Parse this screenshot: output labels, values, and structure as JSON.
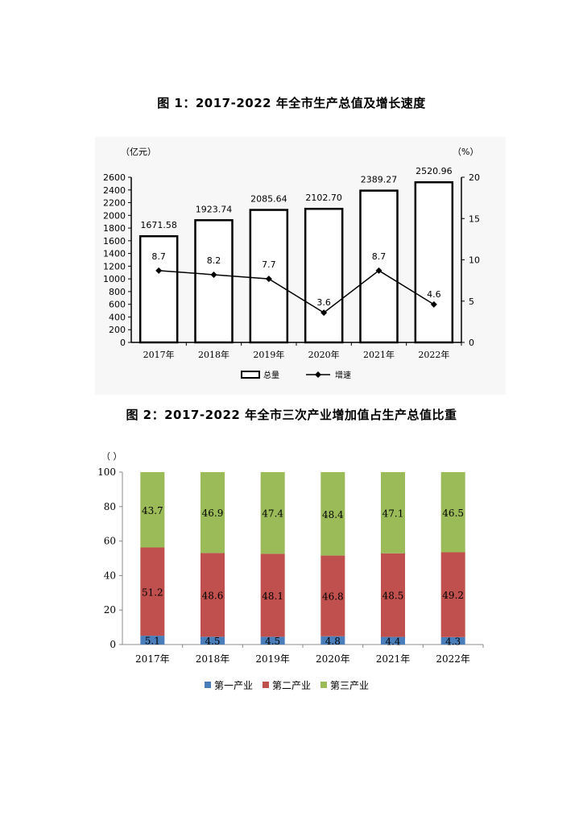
{
  "chart_data": [
    {
      "type": "bar",
      "title": "图 1：2017-2022 年全市生产总值及增长速度",
      "categories": [
        "2017年",
        "2018年",
        "2019年",
        "2020年",
        "2021年",
        "2022年"
      ],
      "series": [
        {
          "name": "总量",
          "type": "bar",
          "axis": "left",
          "values": [
            1671.58,
            1923.74,
            2085.64,
            2102.7,
            2389.27,
            2520.96
          ],
          "labels": [
            "1671.58",
            "1923.74",
            "2085.64",
            "2102.70",
            "2389.27",
            "2520.96"
          ]
        },
        {
          "name": "增速",
          "type": "line",
          "axis": "right",
          "values": [
            8.7,
            8.2,
            7.7,
            3.6,
            8.7,
            4.6
          ],
          "labels": [
            "8.7",
            "8.2",
            "7.7",
            "3.6",
            "8.7",
            "4.6"
          ]
        }
      ],
      "ylabel": "（亿元）",
      "ylabel_right": "（%）",
      "ylim": [
        0,
        2600
      ],
      "yticks": [
        "0",
        "200",
        "400",
        "600",
        "800",
        "1000",
        "1200",
        "1400",
        "1600",
        "1800",
        "2000",
        "2200",
        "2400",
        "2600"
      ],
      "ylim_right": [
        0,
        20
      ],
      "yticks_right": [
        "0",
        "5",
        "10",
        "15",
        "20"
      ],
      "legend_position": "bottom",
      "grid": false
    },
    {
      "type": "bar",
      "stacked": true,
      "title": "图 2：2017-2022 年全市三次产业增加值占生产总值比重",
      "categories": [
        "2017年",
        "2018年",
        "2019年",
        "2020年",
        "2021年",
        "2022年"
      ],
      "series": [
        {
          "name": "第一产业",
          "color": "#4a7ebb",
          "values": [
            5.1,
            4.5,
            4.5,
            4.8,
            4.4,
            4.3
          ],
          "labels": [
            "5.1",
            "4.5",
            "4.5",
            "4.8",
            "4.4",
            "4.3"
          ]
        },
        {
          "name": "第二产业",
          "color": "#c0504d",
          "values": [
            51.2,
            48.6,
            48.1,
            46.8,
            48.5,
            49.2
          ],
          "labels": [
            "51.2",
            "48.6",
            "48.1",
            "46.8",
            "48.5",
            "49.2"
          ]
        },
        {
          "name": "第三产业",
          "color": "#9bbb59",
          "values": [
            43.7,
            46.9,
            47.4,
            48.4,
            47.1,
            46.5
          ],
          "labels": [
            "43.7",
            "46.9",
            "47.4",
            "48.4",
            "47.1",
            "46.5"
          ]
        }
      ],
      "ylabel": "（ ）",
      "ylim": [
        0,
        100
      ],
      "yticks": [
        "0",
        "20",
        "40",
        "60",
        "80",
        "100"
      ],
      "legend_position": "bottom",
      "grid": false
    }
  ]
}
